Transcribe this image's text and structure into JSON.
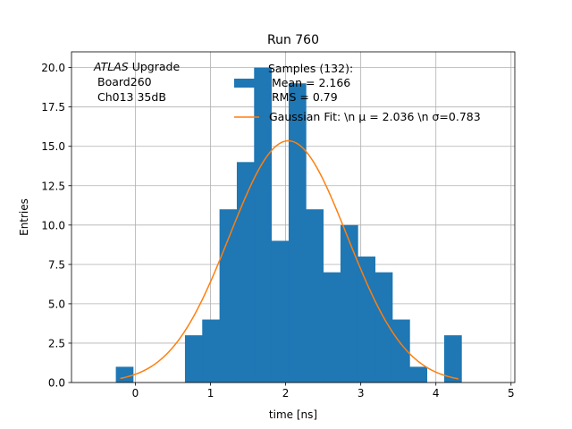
{
  "chart_data": {
    "type": "bar",
    "title": "Run 760",
    "xlabel": "time [ns]",
    "ylabel": "Entries",
    "xlim": [
      -0.85,
      5.05
    ],
    "ylim": [
      0,
      21
    ],
    "x_ticks": [
      0,
      1,
      2,
      3,
      4,
      5
    ],
    "y_ticks": [
      0.0,
      2.5,
      5.0,
      7.5,
      10.0,
      12.5,
      15.0,
      17.5,
      20.0
    ],
    "grid": true,
    "annotation": {
      "italic_part": "ATLAS",
      "rest": " Upgrade",
      "line2": "Board260",
      "line3": "Ch013 35dB"
    },
    "legend": {
      "position": "top-right",
      "hist_label_lines": [
        "Samples (132):",
        "Mean = 2.166",
        "RMS = 0.79"
      ],
      "fit_label": "Gaussian Fit: \\n μ = 2.036 \\n σ=0.783"
    },
    "histogram": {
      "name": "Samples (132)",
      "color": "#1f77b4",
      "bin_edges": [
        -0.26,
        -0.03,
        0.2,
        0.43,
        0.66,
        0.89,
        1.12,
        1.35,
        1.58,
        1.81,
        2.04,
        2.27,
        2.5,
        2.73,
        2.96,
        3.19,
        3.42,
        3.65,
        3.88,
        4.11,
        4.34
      ],
      "counts": [
        1,
        0,
        0,
        0,
        3,
        4,
        11,
        14,
        20,
        9,
        19,
        11,
        7,
        10,
        8,
        7,
        4,
        1,
        0,
        3
      ]
    },
    "fit": {
      "name": "Gaussian Fit",
      "color": "#ff7f0e",
      "amplitude": 15.35,
      "mu": 2.036,
      "sigma": 0.783,
      "x_range": [
        -0.2,
        4.3
      ]
    }
  }
}
